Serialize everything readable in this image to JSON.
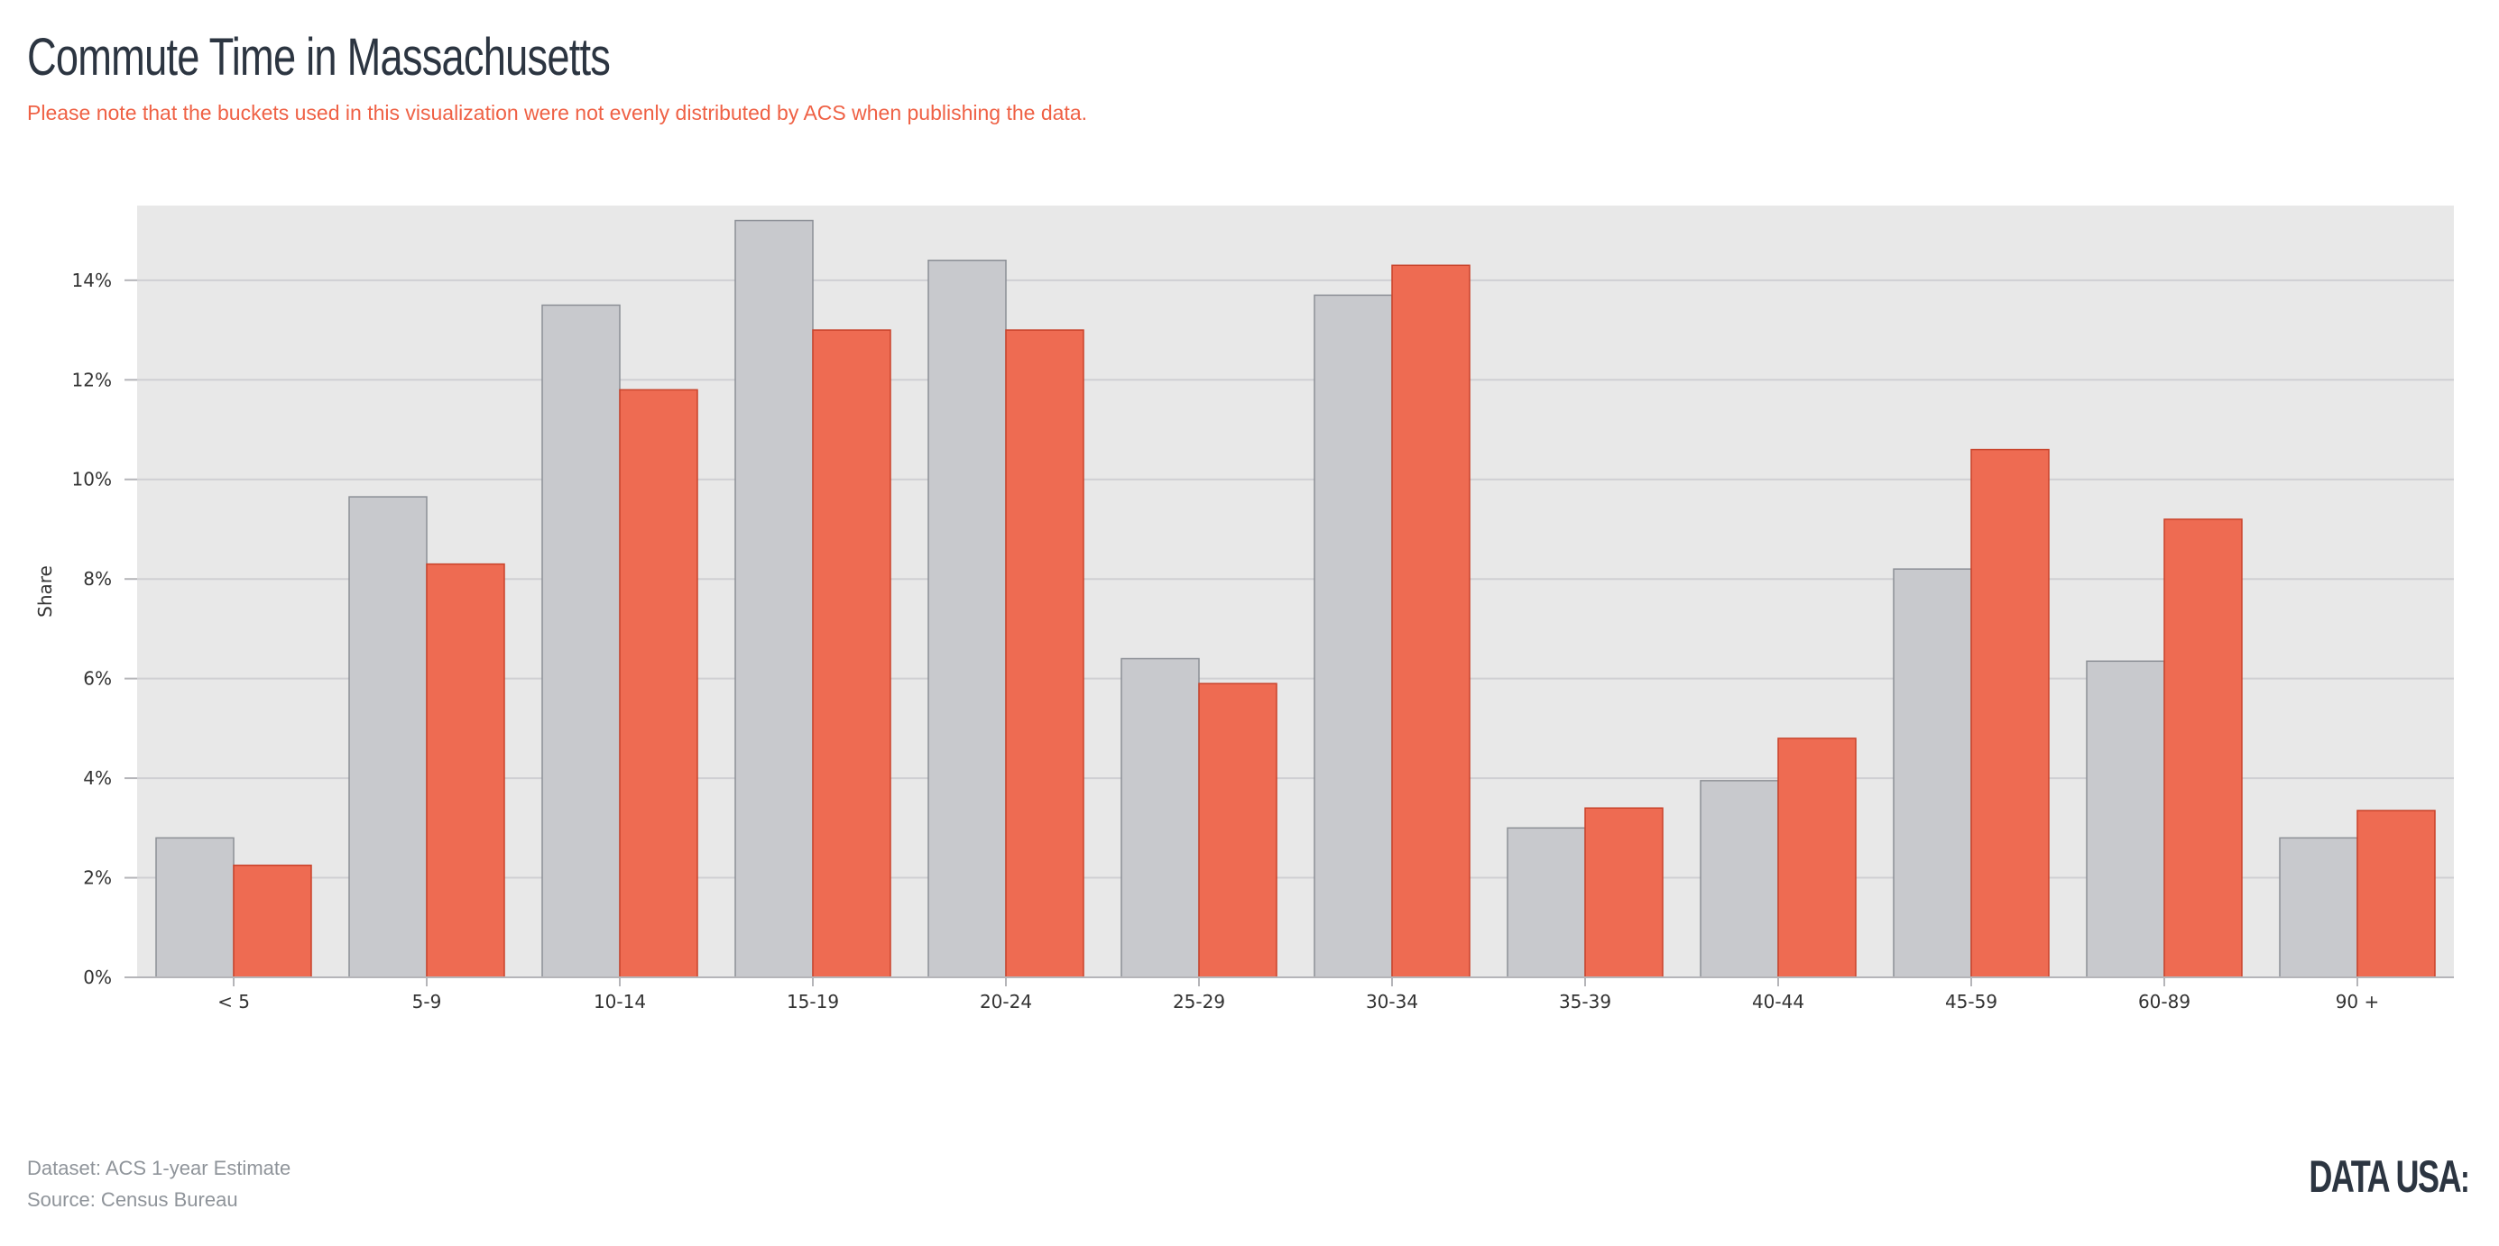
{
  "header": {
    "title": "Commute Time in Massachusetts",
    "subtitle": "Please note that the buckets used in this visualization were not evenly distributed by ACS when publishing the data."
  },
  "footer": {
    "dataset": "Dataset: ACS 1-year Estimate",
    "source": "Source: Census Bureau",
    "logo_text": "DATA USA",
    "logo_mark": ":"
  },
  "colors": {
    "plot_background": "#e8e8e8",
    "gridline": "#cfcfd3",
    "series_gray": "#c8c9cd",
    "series_gray_stroke": "#8c8f96",
    "series_red": "#ee6b52",
    "series_red_stroke": "#c9432b",
    "title": "#2c3541",
    "subtitle": "#ef6145",
    "footer": "#8f949a"
  },
  "chart_data": {
    "type": "bar",
    "title": "Commute Time in Massachusetts",
    "xlabel": "",
    "ylabel": "Share",
    "ylim": [
      0,
      15.5
    ],
    "yticks": [
      "0%",
      "2%",
      "4%",
      "6%",
      "8%",
      "10%",
      "12%",
      "14%"
    ],
    "ytick_values": [
      0,
      2,
      4,
      6,
      8,
      10,
      12,
      14
    ],
    "grid": true,
    "legend": "none",
    "categories": [
      "< 5",
      "5-9",
      "10-14",
      "15-19",
      "20-24",
      "25-29",
      "30-34",
      "35-39",
      "40-44",
      "45-59",
      "60-89",
      "90 +"
    ],
    "series": [
      {
        "color": "gray",
        "values": [
          2.8,
          9.65,
          13.5,
          15.2,
          14.4,
          6.4,
          13.7,
          3.0,
          3.95,
          8.2,
          6.35,
          2.8
        ]
      },
      {
        "color": "red",
        "values": [
          2.25,
          8.3,
          11.8,
          13.0,
          13.0,
          5.9,
          14.3,
          3.4,
          4.8,
          10.6,
          9.2,
          3.35
        ]
      }
    ]
  }
}
